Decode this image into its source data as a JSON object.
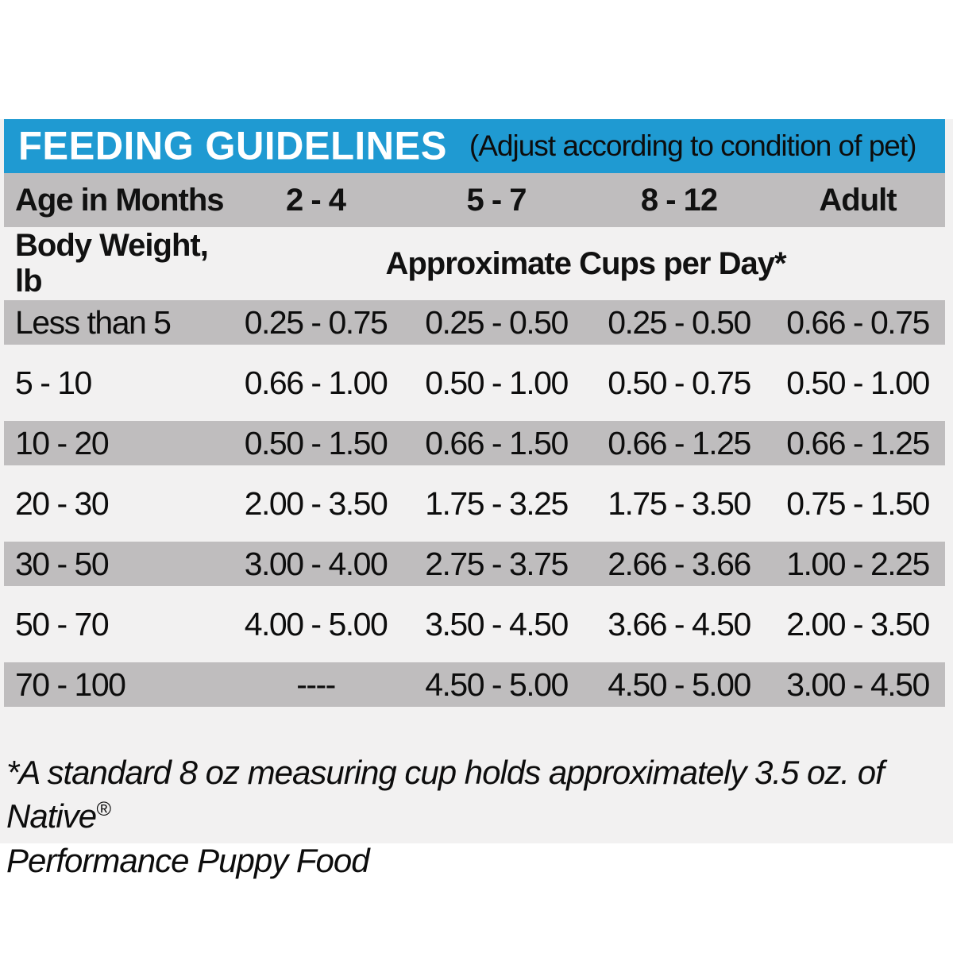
{
  "header": {
    "title": "FEEDING GUIDELINES",
    "subtitle": "(Adjust according to condition of pet)"
  },
  "age_header": {
    "label": "Age in Months",
    "columns": [
      "2 - 4",
      "5 - 7",
      "8 - 12",
      "Adult"
    ]
  },
  "subheader": {
    "left": "Body Weight, lb",
    "right": "Approximate Cups per Day*"
  },
  "chart_data": {
    "type": "table",
    "title": "FEEDING GUIDELINES",
    "columns": [
      "Body Weight, lb",
      "2 - 4",
      "5 - 7",
      "8 - 12",
      "Adult"
    ],
    "rows": [
      {
        "weight": "Less than 5",
        "values": [
          "0.25 - 0.75",
          "0.25 - 0.50",
          "0.25 - 0.50",
          "0.66 - 0.75"
        ]
      },
      {
        "weight": "5 - 10",
        "values": [
          "0.66 - 1.00",
          "0.50 - 1.00",
          "0.50 - 0.75",
          "0.50 - 1.00"
        ]
      },
      {
        "weight": "10 - 20",
        "values": [
          "0.50 - 1.50",
          "0.66 - 1.50",
          "0.66 - 1.25",
          "0.66 - 1.25"
        ]
      },
      {
        "weight": "20 - 30",
        "values": [
          "2.00 - 3.50",
          "1.75 - 3.25",
          "1.75 - 3.50",
          "0.75 - 1.50"
        ]
      },
      {
        "weight": "30 - 50",
        "values": [
          "3.00 - 4.00",
          "2.75 - 3.75",
          "2.66 - 3.66",
          "1.00 - 2.25"
        ]
      },
      {
        "weight": "50 - 70",
        "values": [
          "4.00 - 5.00",
          "3.50 - 4.50",
          "3.66 - 4.50",
          "2.00 - 3.50"
        ]
      },
      {
        "weight": "70 - 100",
        "values": [
          "----",
          "4.50 - 5.00",
          "4.50 - 5.00",
          "3.00 - 4.50"
        ]
      }
    ]
  },
  "footnote": {
    "line1": "*A standard 8 oz measuring cup holds approximately 3.5 oz. of Native",
    "reg_mark": "®",
    "line2": "Performance Puppy Food"
  },
  "colors": {
    "accent_blue": "#1f9ad2",
    "stripe_gray": "#bfbdbe",
    "backdrop_gray": "#f2f1f1",
    "text_black": "#0d0d0d"
  }
}
